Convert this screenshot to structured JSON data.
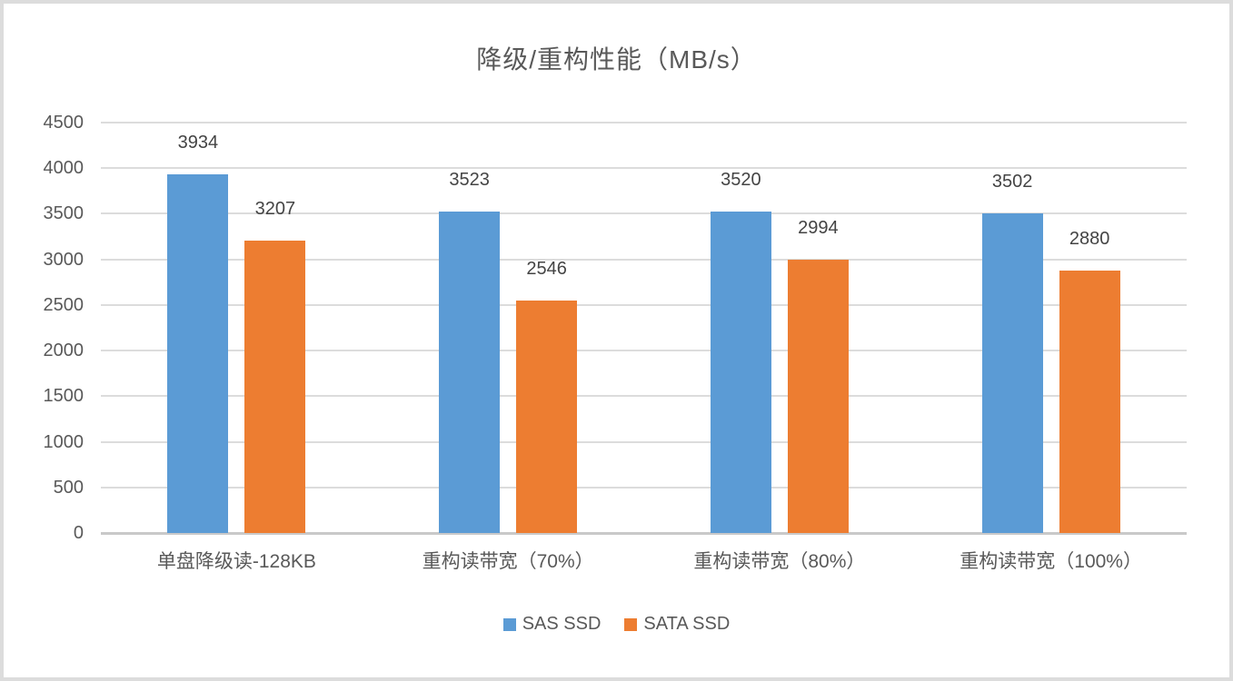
{
  "chart": {
    "title": "降级/重构性能（MB/s）"
  },
  "chart_data": {
    "type": "bar",
    "title": "降级/重构性能（MB/s）",
    "categories": [
      "单盘降级读-128KB",
      "重构读带宽（70%）",
      "重构读带宽（80%）",
      "重构读带宽（100%）"
    ],
    "series": [
      {
        "name": "SAS SSD",
        "color": "#5B9BD5",
        "values": [
          3934,
          3523,
          3520,
          3502
        ]
      },
      {
        "name": "SATA SSD",
        "color": "#ED7D31",
        "values": [
          3207,
          2546,
          2994,
          2880
        ]
      }
    ],
    "xlabel": "",
    "ylabel": "",
    "ylim": [
      0,
      4500
    ],
    "yticks": [
      0,
      500,
      1000,
      1500,
      2000,
      2500,
      3000,
      3500,
      4000,
      4500
    ],
    "grid": true,
    "data_labels": true,
    "legend_position": "bottom",
    "colors": {
      "gridline": "#dcdcdc",
      "axis_line": "#c9c9c9",
      "axis_text": "#595959",
      "data_label_text": "#444444",
      "title_text": "#595959",
      "frame_border": "#dcdcdc"
    }
  }
}
